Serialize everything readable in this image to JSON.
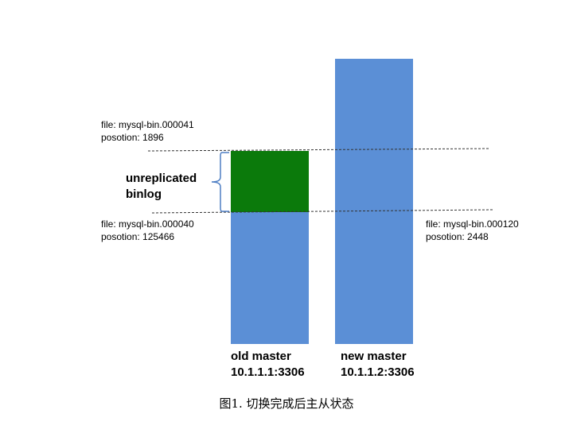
{
  "top_marker": {
    "file": "file: mysql-bin.000041",
    "position": "posotion: 1896"
  },
  "old_marker": {
    "file": "file: mysql-bin.000040",
    "position": "posotion: 125466"
  },
  "new_marker": {
    "file": "file: mysql-bin.000120",
    "position": "posotion: 2448"
  },
  "unreplicated_label": {
    "line1": "unreplicated",
    "line2": "binlog"
  },
  "old_master": {
    "name": "old master",
    "address": "10.1.1.1:3306"
  },
  "new_master": {
    "name": "new master",
    "address": "10.1.1.2:3306"
  },
  "caption": "图1. 切换完成后主从状态",
  "colors": {
    "bar": "#5B8FD6",
    "unreplicated": "#0B7A0B",
    "brace": "#4F7FC4"
  }
}
